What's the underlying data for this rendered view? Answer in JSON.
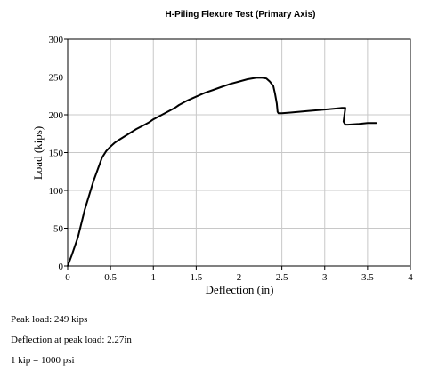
{
  "chart_data": {
    "type": "line",
    "title": "H-Piling Flexure Test (Primary Axis)",
    "xlabel": "Deflection (in)",
    "ylabel": "Load (kips)",
    "xlim": [
      0,
      4
    ],
    "ylim": [
      0,
      300
    ],
    "xticks": [
      "0",
      "0.5",
      "1",
      "1.5",
      "2",
      "2.5",
      "3",
      "3.5",
      "4"
    ],
    "xtick_values": [
      0,
      0.5,
      1,
      1.5,
      2,
      2.5,
      3,
      3.5,
      4
    ],
    "yticks": [
      "0",
      "50",
      "100",
      "150",
      "200",
      "250",
      "300"
    ],
    "ytick_values": [
      0,
      50,
      100,
      150,
      200,
      250,
      300
    ],
    "grid": true,
    "legend": "none",
    "series": [
      {
        "color": "#000000",
        "x": [
          0,
          0.05,
          0.12,
          0.2,
          0.3,
          0.4,
          0.45,
          0.5,
          0.55,
          0.6,
          0.7,
          0.8,
          0.9,
          0.95,
          1.0,
          1.1,
          1.2,
          1.25,
          1.3,
          1.4,
          1.5,
          1.6,
          1.7,
          1.8,
          1.9,
          2.0,
          2.1,
          2.2,
          2.27,
          2.32,
          2.36,
          2.4,
          2.42,
          2.44,
          2.45,
          2.46,
          2.5,
          2.6,
          2.8,
          3.0,
          3.1,
          3.2,
          3.24,
          3.22,
          3.24,
          3.27,
          3.4,
          3.5,
          3.6
        ],
        "y": [
          0,
          15,
          38,
          75,
          112,
          143,
          152,
          158,
          163,
          167,
          174,
          181,
          187,
          190,
          194,
          200,
          206,
          209,
          213,
          219,
          224,
          229,
          233,
          237,
          241,
          244,
          247,
          249,
          249,
          248,
          244,
          238,
          228,
          215,
          204,
          202,
          202,
          203,
          205,
          207,
          208,
          209,
          209,
          191,
          187,
          187,
          188,
          189,
          189
        ]
      }
    ]
  },
  "notes": {
    "peak_load": "Peak load: 249 kips",
    "peak_deflection": "Deflection at peak load: 2.27in",
    "unit_note": "1 kip = 1000 psi"
  }
}
